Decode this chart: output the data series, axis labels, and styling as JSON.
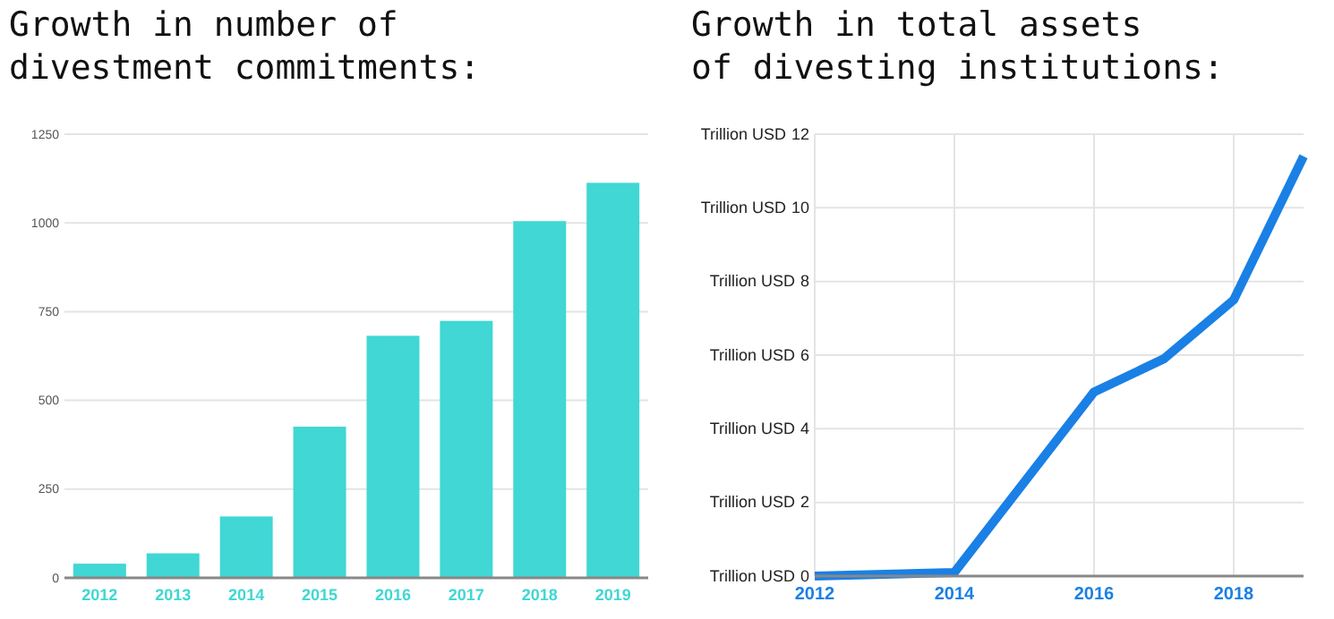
{
  "chart_data": [
    {
      "type": "bar",
      "title": "Growth in number of\ndivestment commitments:",
      "categories": [
        "2012",
        "2013",
        "2014",
        "2015",
        "2016",
        "2017",
        "2018",
        "2019"
      ],
      "values": [
        40,
        69,
        173,
        426,
        682,
        724,
        1005,
        1113
      ],
      "color": "#40d7d4",
      "ylim": [
        0,
        1250
      ],
      "yticks": [
        0,
        250,
        500,
        750,
        1000,
        1250
      ],
      "grid": "y"
    },
    {
      "type": "line",
      "title": "Growth in total assets\nof divesting institutions:",
      "x": [
        2012,
        2014,
        2016,
        2017,
        2018,
        2019
      ],
      "series": [
        {
          "color": "#1a80e5",
          "values": [
            0,
            0.1,
            5,
            5.9,
            7.5,
            11.4
          ]
        }
      ],
      "xlim": [
        2012,
        2019
      ],
      "xticks": [
        2012,
        2014,
        2016,
        2018
      ],
      "ylabel": "Trillion USD",
      "ylim": [
        0,
        12
      ],
      "yticks": [
        0,
        2,
        4,
        6,
        8,
        10,
        12
      ],
      "grid": true,
      "line_style": "solid"
    }
  ]
}
